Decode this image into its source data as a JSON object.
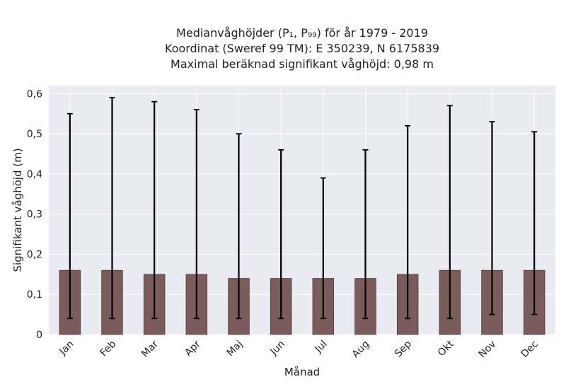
{
  "chart_data": {
    "type": "bar",
    "title_lines": [
      "Medianvåghöjder (P₁, P₉₉) för år 1979 - 2019",
      "Koordinat (Sweref 99 TM): E 350239, N 6175839",
      "Maximal beräknad signifikant våghöjd: 0,98 m"
    ],
    "xlabel": "Månad",
    "ylabel": "Signifikant våghöjd (m)",
    "categories": [
      "Jan",
      "Feb",
      "Mar",
      "Apr",
      "Maj",
      "Jun",
      "Jul",
      "Aug",
      "Sep",
      "Okt",
      "Nov",
      "Dec"
    ],
    "values": [
      0.16,
      0.16,
      0.15,
      0.15,
      0.14,
      0.14,
      0.14,
      0.14,
      0.15,
      0.16,
      0.16,
      0.16
    ],
    "error_low": [
      0.04,
      0.04,
      0.04,
      0.04,
      0.04,
      0.04,
      0.04,
      0.04,
      0.04,
      0.04,
      0.05,
      0.05
    ],
    "error_high": [
      0.55,
      0.59,
      0.58,
      0.56,
      0.5,
      0.46,
      0.39,
      0.46,
      0.52,
      0.57,
      0.53,
      0.505
    ],
    "ylim": [
      0,
      0.62
    ],
    "yticks": [
      0,
      0.1,
      0.2,
      0.3,
      0.4,
      0.5,
      0.6
    ],
    "ytick_labels": [
      "0",
      "0,1",
      "0,2",
      "0,3",
      "0,4",
      "0,5",
      "0,6"
    ],
    "grid": true,
    "colors": {
      "bar": "#7b5c5c",
      "bar_edge": "#3a2a2a",
      "errorbar": "#000000",
      "plot_bg": "#eaeaf2",
      "grid": "#ffffff"
    }
  }
}
